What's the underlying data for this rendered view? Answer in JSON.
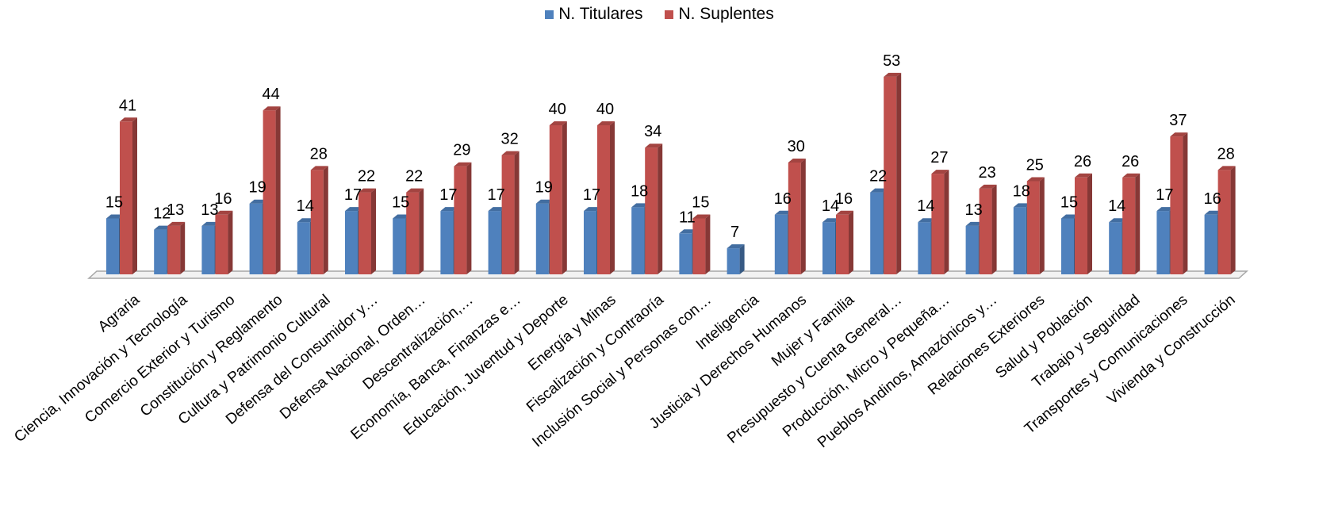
{
  "chart_data": {
    "type": "bar",
    "categories": [
      "Agraria",
      "Ciencia, Innovación y Tecnología",
      "Comercio Exterior y Turismo",
      "Constitución y Reglamento",
      "Cultura y Patrimonio Cultural",
      "Defensa del Consumidor y…",
      "Defensa Nacional, Orden…",
      "Descentralización,…",
      "Economía, Banca, Finanzas e…",
      "Educación, Juventud y Deporte",
      "Energía y Minas",
      "Fiscalización y Contraoría",
      "Inclusión Social y Personas con…",
      "Inteligencia",
      "Justicia y Derechos Humanos",
      "Mujer y Familia",
      "Presupuesto y Cuenta General…",
      "Producción, Micro y Pequeña…",
      "Pueblos Andinos, Amazónicos y…",
      "Relaciones Exteriores",
      "Salud y Población",
      "Trabajo y Seguridad",
      "Transportes y Comunicaciones",
      "Vivienda y Construcción"
    ],
    "series": [
      {
        "name": "N. Titulares",
        "color": "#4F81BD",
        "values": [
          15,
          12,
          13,
          19,
          14,
          17,
          15,
          17,
          17,
          19,
          17,
          18,
          11,
          7,
          16,
          14,
          22,
          14,
          13,
          18,
          15,
          14,
          17,
          16
        ]
      },
      {
        "name": "N. Suplentes",
        "color": "#C0504D",
        "values": [
          41,
          13,
          16,
          44,
          28,
          22,
          22,
          29,
          32,
          40,
          40,
          34,
          15,
          null,
          30,
          16,
          53,
          27,
          23,
          25,
          26,
          26,
          37,
          28
        ]
      }
    ],
    "title": "",
    "xlabel": "",
    "ylabel": "",
    "ylim": [
      0,
      53
    ],
    "grid": false,
    "legend_position": "top"
  }
}
